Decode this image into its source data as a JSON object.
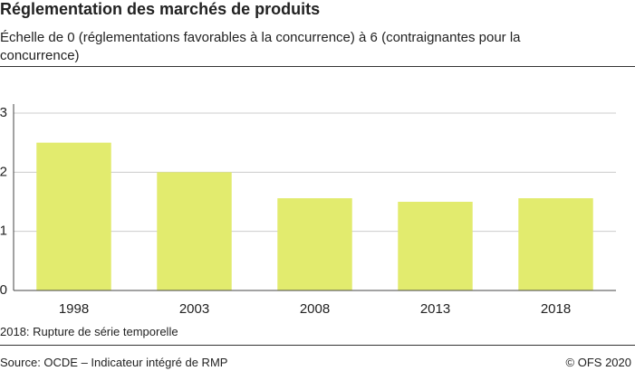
{
  "chart_data": {
    "type": "bar",
    "title": "Réglementation des marchés de produits",
    "subtitle": "Échelle de 0 (réglementations favorables à la concurrence) à 6 (contraignantes pour la concurrence)",
    "categories": [
      "1998",
      "2003",
      "2008",
      "2013",
      "2018"
    ],
    "values": [
      2.5,
      2.0,
      1.56,
      1.5,
      1.56
    ],
    "color": "#e2eb6e",
    "ylim": [
      0,
      3
    ],
    "yticks": [
      0,
      1,
      2,
      3
    ],
    "grid": true,
    "note": "2018: Rupture de série temporelle",
    "source": "Source: OCDE – Indicateur intégré de RMP",
    "copyright": "© OFS 2020"
  }
}
